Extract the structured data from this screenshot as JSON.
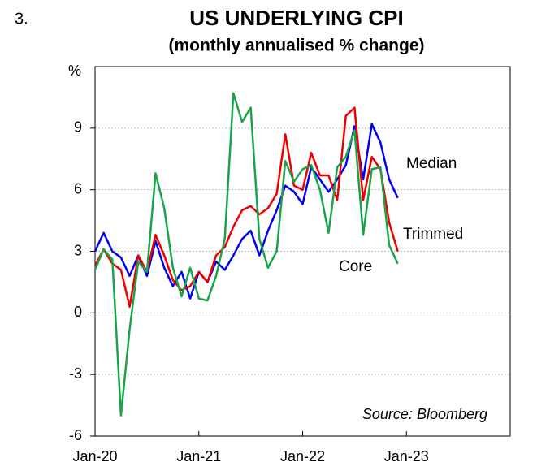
{
  "figure_label": "3.",
  "chart_data": {
    "type": "line",
    "title": "US UNDERLYING CPI",
    "subtitle": "(monthly annualised % change)",
    "y_label": "%",
    "annotation": "Source: Bloomberg",
    "x": [
      "2020-01",
      "2020-02",
      "2020-03",
      "2020-04",
      "2020-05",
      "2020-06",
      "2020-07",
      "2020-08",
      "2020-09",
      "2020-10",
      "2020-11",
      "2020-12",
      "2021-01",
      "2021-02",
      "2021-03",
      "2021-04",
      "2021-05",
      "2021-06",
      "2021-07",
      "2021-08",
      "2021-09",
      "2021-10",
      "2021-11",
      "2021-12",
      "2022-01",
      "2022-02",
      "2022-03",
      "2022-04",
      "2022-05",
      "2022-06",
      "2022-07",
      "2022-08",
      "2022-09",
      "2022-10",
      "2022-11",
      "2022-12"
    ],
    "xlim": [
      "2020-01",
      "2024-01"
    ],
    "xticks": [
      {
        "value": "2020-01",
        "label": "Jan-20"
      },
      {
        "value": "2021-01",
        "label": "Jan-21"
      },
      {
        "value": "2022-01",
        "label": "Jan-22"
      },
      {
        "value": "2023-01",
        "label": "Jan-23"
      }
    ],
    "ylim": [
      -6,
      12
    ],
    "yticks": [
      -6,
      -3,
      0,
      3,
      6,
      9
    ],
    "grid": true,
    "series": [
      {
        "name": "Median",
        "color": "#0000ee",
        "values": [
          3.0,
          3.9,
          3.0,
          2.7,
          1.8,
          2.8,
          1.8,
          3.5,
          2.2,
          1.3,
          2.0,
          0.7,
          2.0,
          1.5,
          2.5,
          2.1,
          2.8,
          3.6,
          4.0,
          2.8,
          4.0,
          5.0,
          6.2,
          5.9,
          5.3,
          7.1,
          6.5,
          5.9,
          6.5,
          7.2,
          9.1,
          6.5,
          9.2,
          8.3,
          6.5,
          5.6
        ]
      },
      {
        "name": "Trimmed",
        "color": "#ee0000",
        "values": [
          2.3,
          3.1,
          2.4,
          2.1,
          0.3,
          2.8,
          2.0,
          3.8,
          2.8,
          1.6,
          1.1,
          1.3,
          2.0,
          1.5,
          2.8,
          3.2,
          4.2,
          5.0,
          5.2,
          4.8,
          5.1,
          5.8,
          8.7,
          6.2,
          6.0,
          7.8,
          6.7,
          6.7,
          5.5,
          9.6,
          10.0,
          5.5,
          7.6,
          7.0,
          4.4,
          3.0
        ]
      },
      {
        "name": "Core",
        "color": "#1aa34a",
        "values": [
          2.1,
          3.1,
          2.6,
          -5.0,
          -0.8,
          2.5,
          2.0,
          6.8,
          5.1,
          2.2,
          0.8,
          2.2,
          0.7,
          0.6,
          1.8,
          3.6,
          10.7,
          9.3,
          10.0,
          3.6,
          2.2,
          3.0,
          7.4,
          6.4,
          7.0,
          7.2,
          6.0,
          3.9,
          7.1,
          7.6,
          8.9,
          3.8,
          7.0,
          7.1,
          3.3,
          2.4
        ]
      }
    ]
  }
}
